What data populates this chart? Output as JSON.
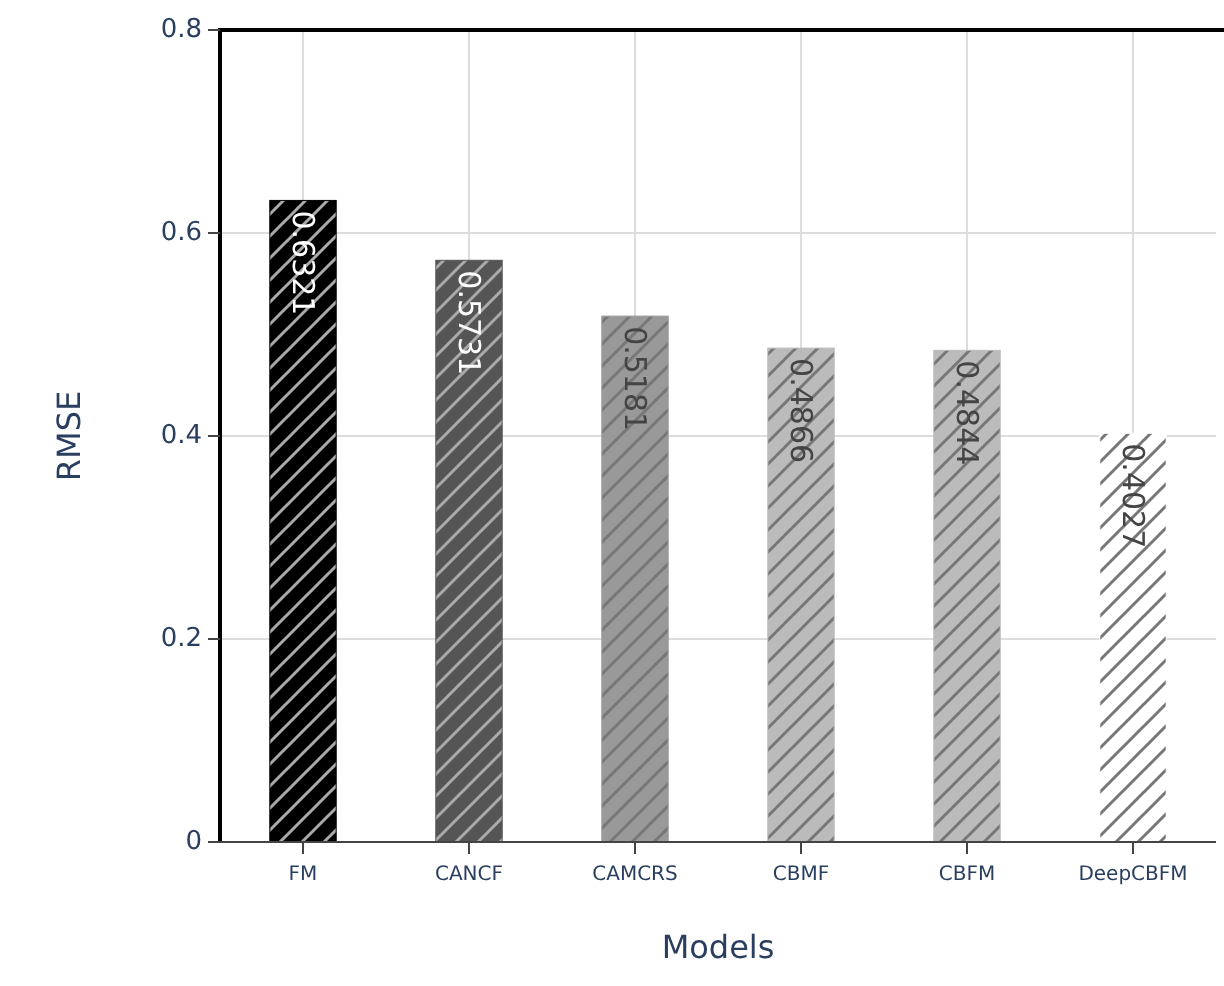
{
  "chart_data": {
    "type": "bar",
    "xlabel": "Models",
    "ylabel": "RMSE",
    "categories": [
      "FM",
      "CANCF",
      "CAMCRS",
      "CBMF",
      "CBFM",
      "DeepCBFM"
    ],
    "values": [
      0.6321,
      0.5731,
      0.5181,
      0.4866,
      0.4844,
      0.4027
    ],
    "colors": [
      "#000000",
      "#555555",
      "#999999",
      "#bbbbbb",
      "#bbbbbb",
      "#ffffff"
    ],
    "ylim": [
      0,
      0.8
    ],
    "yticks": [
      0,
      0.2,
      0.4,
      0.6,
      0.8
    ],
    "grid": true,
    "data_labels": true
  }
}
